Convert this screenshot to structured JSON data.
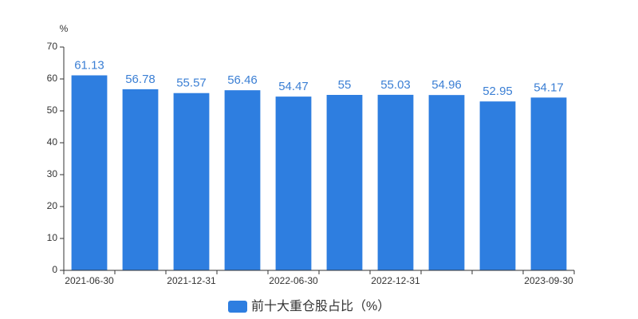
{
  "chart_data": {
    "type": "bar",
    "y_label": "%",
    "categories": [
      "2021-06-30",
      null,
      "2021-12-31",
      null,
      "2022-06-30",
      null,
      "2022-12-31",
      null,
      null,
      "2023-09-30"
    ],
    "series": [
      {
        "name": "前十大重仓股占比（%）",
        "color": "#2e7ee0",
        "values": [
          61.13,
          56.78,
          55.57,
          56.46,
          54.47,
          55,
          55.03,
          54.96,
          52.95,
          54.17
        ]
      }
    ],
    "ylim": [
      0,
      70
    ],
    "yticks": [
      0,
      10,
      20,
      30,
      40,
      50,
      60,
      70
    ],
    "grid": false,
    "legend": "bottom"
  }
}
